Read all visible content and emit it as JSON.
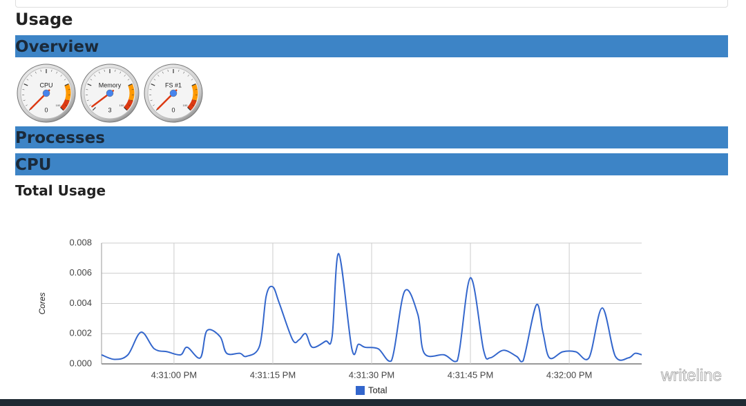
{
  "header": {
    "title": "Usage"
  },
  "sections": [
    "Overview",
    "Processes",
    "CPU"
  ],
  "gauges": [
    {
      "label": "CPU",
      "value": 0
    },
    {
      "label": "Memory",
      "value": 3
    },
    {
      "label": "FS #1",
      "value": 0
    }
  ],
  "gauge_max": 100,
  "gauge_ranges": [
    {
      "from": 75,
      "to": 90,
      "color": "#ff9900"
    },
    {
      "from": 90,
      "to": 100,
      "color": "#dc3912"
    }
  ],
  "subtitle": "Total Usage",
  "chart_data": {
    "type": "line",
    "y_label": "Cores",
    "legend": "bottom",
    "grid": true,
    "x": [
      "4:30:49 PM",
      "4:30:51 PM",
      "4:30:53 PM",
      "4:30:55 PM",
      "4:30:57 PM",
      "4:30:59 PM",
      "4:31:01 PM",
      "4:31:02 PM",
      "4:31:04 PM",
      "4:31:05 PM",
      "4:31:07 PM",
      "4:31:08 PM",
      "4:31:10 PM",
      "4:31:11 PM",
      "4:31:13 PM",
      "4:31:14 PM",
      "4:31:15 PM",
      "4:31:16 PM",
      "4:31:18 PM",
      "4:31:19 PM",
      "4:31:20 PM",
      "4:31:21 PM",
      "4:31:23 PM",
      "4:31:24 PM",
      "4:31:25 PM",
      "4:31:27 PM",
      "4:31:28 PM",
      "4:31:29 PM",
      "4:31:31 PM",
      "4:31:33 PM",
      "4:31:35 PM",
      "4:31:37 PM",
      "4:31:38 PM",
      "4:31:41 PM",
      "4:31:43 PM",
      "4:31:45 PM",
      "4:31:47 PM",
      "4:31:48 PM",
      "4:31:50 PM",
      "4:31:52 PM",
      "4:31:53 PM",
      "4:31:55 PM",
      "4:31:56 PM",
      "4:31:57 PM",
      "4:31:59 PM",
      "4:32:01 PM",
      "4:32:03 PM",
      "4:32:05 PM",
      "4:32:07 PM",
      "4:32:09 PM",
      "4:32:10 PM",
      "4:32:11 PM"
    ],
    "series": [
      {
        "name": "Total",
        "color": "#3366cc",
        "values": [
          0.0006,
          0.0003,
          0.0006,
          0.0021,
          0.001,
          0.0008,
          0.0006,
          0.0011,
          0.0004,
          0.0022,
          0.0018,
          0.0007,
          0.0007,
          0.0005,
          0.0012,
          0.0045,
          0.0051,
          0.004,
          0.0016,
          0.0016,
          0.002,
          0.0011,
          0.0015,
          0.0018,
          0.0073,
          0.001,
          0.0013,
          0.0011,
          0.001,
          0.0002,
          0.0048,
          0.0033,
          0.0007,
          0.0006,
          0.0002,
          0.0057,
          0.0009,
          0.0004,
          0.0009,
          0.0005,
          0.0002,
          0.0039,
          0.0021,
          0.0004,
          0.0008,
          0.0008,
          0.0004,
          0.0037,
          0.0005,
          0.0004,
          0.0007,
          0.0006
        ]
      }
    ],
    "xlim": [
      "4:30:49 PM",
      "4:32:11 PM"
    ],
    "xticks": [
      "4:31:00 PM",
      "4:31:15 PM",
      "4:31:30 PM",
      "4:31:45 PM",
      "4:32:00 PM"
    ],
    "ylim": [
      0,
      0.008
    ],
    "yticks": [
      {
        "value": 0,
        "label": "0.000"
      },
      {
        "value": 0.002,
        "label": "0.002"
      },
      {
        "value": 0.004,
        "label": "0.004"
      },
      {
        "value": 0.006,
        "label": "0.006"
      },
      {
        "value": 0.008,
        "label": "0.008"
      }
    ]
  },
  "watermark": "writeline"
}
